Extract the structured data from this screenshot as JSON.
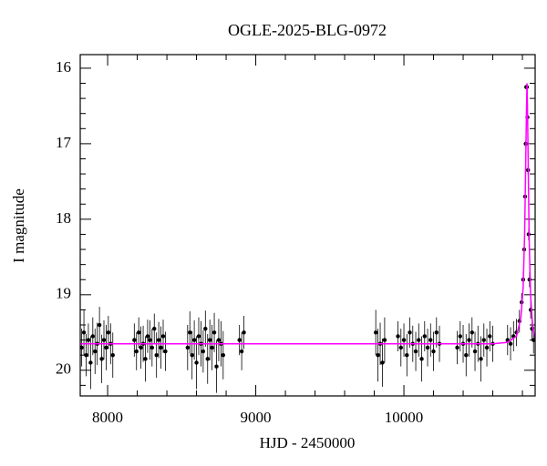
{
  "chart_data": {
    "type": "scatter",
    "title": "OGLE-2025-BLG-0972",
    "x_label": "HJD - 2450000",
    "y_label": "I magnitude",
    "xlim": [
      7815,
      10886
    ],
    "ylim": [
      20.34,
      15.82
    ],
    "xticks": [
      8000,
      9000,
      10000
    ],
    "yticks": [
      16,
      17,
      18,
      19,
      20
    ],
    "xminorticks": [
      7800,
      8200,
      8400,
      8600,
      8800,
      9200,
      9400,
      9600,
      9800,
      10200,
      10400,
      10600,
      10800
    ],
    "yminorticks": [
      16.2,
      16.4,
      16.6,
      16.8,
      17.2,
      17.4,
      17.6,
      17.8,
      18.2,
      18.4,
      18.6,
      18.8,
      19.2,
      19.4,
      19.6,
      19.8,
      20.2
    ],
    "series": [
      {
        "color": "#000000",
        "x": [
          7825,
          7840,
          7855,
          7870,
          7885,
          7900,
          7915,
          7930,
          7945,
          7960,
          7975,
          7990,
          8005,
          8020,
          8035,
          8180,
          8195,
          8210,
          8225,
          8240,
          8255,
          8270,
          8285,
          8300,
          8315,
          8330,
          8345,
          8360,
          8375,
          8390,
          8540,
          8555,
          8570,
          8585,
          8600,
          8615,
          8630,
          8645,
          8660,
          8675,
          8690,
          8705,
          8720,
          8735,
          8750,
          8765,
          8780,
          8890,
          8905,
          8920,
          9810,
          9825,
          9840,
          9855,
          9870,
          9960,
          9980,
          10000,
          10020,
          10040,
          10060,
          10080,
          10100,
          10120,
          10140,
          10160,
          10180,
          10200,
          10220,
          10240,
          10360,
          10380,
          10400,
          10420,
          10440,
          10460,
          10480,
          10500,
          10520,
          10540,
          10560,
          10580,
          10600,
          10700,
          10720,
          10740,
          10760,
          10780,
          10795,
          10805,
          10812,
          10818,
          10822,
          10826,
          10830,
          10834,
          10838,
          10842,
          10848,
          10856,
          10865,
          10875
        ],
        "values": [
          19.7,
          19.5,
          19.8,
          19.6,
          19.9,
          19.55,
          19.75,
          19.65,
          19.4,
          19.85,
          19.6,
          19.7,
          19.5,
          19.65,
          19.8,
          19.6,
          19.75,
          19.5,
          19.7,
          19.65,
          19.85,
          19.55,
          19.6,
          19.7,
          19.45,
          19.8,
          19.6,
          19.7,
          19.55,
          19.75,
          19.7,
          19.5,
          19.8,
          19.6,
          19.9,
          19.55,
          19.65,
          19.75,
          19.45,
          19.85,
          19.6,
          19.7,
          19.5,
          19.95,
          19.6,
          19.65,
          19.8,
          19.6,
          19.75,
          19.5,
          19.5,
          19.8,
          19.65,
          19.9,
          19.6,
          19.55,
          19.7,
          19.6,
          19.8,
          19.5,
          19.65,
          19.75,
          19.6,
          19.85,
          19.55,
          19.7,
          19.6,
          19.75,
          19.5,
          19.65,
          19.7,
          19.55,
          19.65,
          19.8,
          19.6,
          19.5,
          19.75,
          19.65,
          19.85,
          19.6,
          19.7,
          19.55,
          19.65,
          19.6,
          19.65,
          19.55,
          19.5,
          19.35,
          19.1,
          18.8,
          18.4,
          17.7,
          17.0,
          16.25,
          16.25,
          16.65,
          17.35,
          18.2,
          18.8,
          19.2,
          19.45,
          19.6
        ],
        "errors": [
          0.25,
          0.3,
          0.28,
          0.22,
          0.35,
          0.25,
          0.3,
          0.28,
          0.24,
          0.32,
          0.26,
          0.3,
          0.22,
          0.27,
          0.3,
          0.22,
          0.25,
          0.2,
          0.28,
          0.24,
          0.3,
          0.22,
          0.26,
          0.25,
          0.2,
          0.3,
          0.24,
          0.28,
          0.22,
          0.26,
          0.3,
          0.28,
          0.32,
          0.26,
          0.35,
          0.25,
          0.3,
          0.28,
          0.24,
          0.33,
          0.27,
          0.3,
          0.26,
          0.35,
          0.28,
          0.3,
          0.32,
          0.2,
          0.25,
          0.22,
          0.3,
          0.35,
          0.28,
          0.32,
          0.3,
          0.2,
          0.25,
          0.22,
          0.28,
          0.2,
          0.24,
          0.26,
          0.22,
          0.3,
          0.2,
          0.25,
          0.22,
          0.26,
          0.2,
          0.24,
          0.22,
          0.2,
          0.25,
          0.28,
          0.22,
          0.2,
          0.26,
          0.24,
          0.3,
          0.22,
          0.25,
          0.2,
          0.24,
          0.2,
          0.22,
          0.2,
          0.18,
          0.15,
          0.12,
          0.1,
          0.08,
          0.05,
          0.04,
          0.03,
          0.03,
          0.04,
          0.06,
          0.08,
          0.1,
          0.12,
          0.15,
          0.18
        ]
      },
      {
        "color": "#ff00ff",
        "style": "line",
        "x": [
          7815,
          10600,
          10700,
          10760,
          10790,
          10805,
          10815,
          10822,
          10828,
          10831,
          10834,
          10840,
          10846,
          10855,
          10870,
          10886
        ],
        "values": [
          19.65,
          19.65,
          19.63,
          19.55,
          19.3,
          18.9,
          18.2,
          17.3,
          16.5,
          16.2,
          16.5,
          17.4,
          18.3,
          19.0,
          19.45,
          19.58
        ]
      }
    ]
  }
}
